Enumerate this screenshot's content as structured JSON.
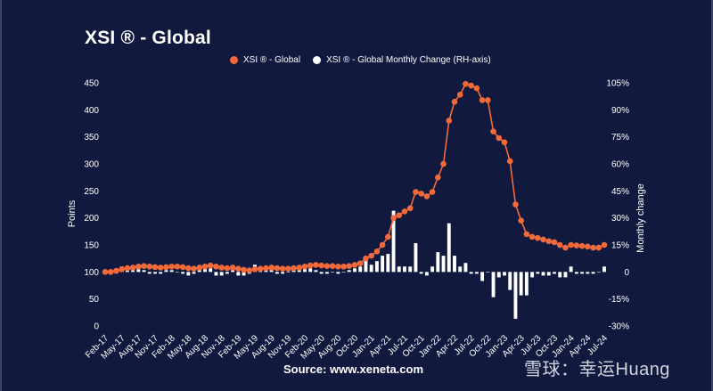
{
  "colors": {
    "background": "#111a3e",
    "index": "#f26a3a",
    "change": "#ffffff"
  },
  "watermark": "雪球：幸运Huang",
  "chart_data": {
    "type": "line",
    "title": "XSI ® - Global",
    "source": "Source: www.xeneta.com",
    "legend": [
      "XSI ® - Global",
      "XSI ® - Global Monthly Change (RH-axis)"
    ],
    "legend_position": "top",
    "ylabel": "Points",
    "y2label": "Monthly change",
    "ylim": [
      0,
      450
    ],
    "y_ticks": [
      "0",
      "50",
      "100",
      "150",
      "200",
      "250",
      "300",
      "350",
      "400",
      "450"
    ],
    "y2lim": [
      -30,
      105
    ],
    "y2_ticks": [
      "-30%",
      "-15%",
      "0",
      "15%",
      "30%",
      "45%",
      "60%",
      "75%",
      "90%",
      "105%"
    ],
    "x_tick_labels": [
      "Feb-17",
      "May-17",
      "Aug-17",
      "Nov-17",
      "Feb-18",
      "May-18",
      "Aug-18",
      "Nov-18",
      "Feb-19",
      "May-19",
      "Aug-19",
      "Nov-19",
      "Feb-20",
      "May-20",
      "Aug-20",
      "Oct-20",
      "Jan-21",
      "Apr-21",
      "Jul-21",
      "Oct-21",
      "Jan-22",
      "Apr-22",
      "Jul-22",
      "Oct-22",
      "Jan-23",
      "Apr-23",
      "Jul-23",
      "Oct-23",
      "Jan-24",
      "Apr-24",
      "Jul-24"
    ],
    "x": [
      "Feb-17",
      "Mar-17",
      "Apr-17",
      "May-17",
      "Jun-17",
      "Jul-17",
      "Aug-17",
      "Sep-17",
      "Oct-17",
      "Nov-17",
      "Dec-17",
      "Jan-18",
      "Feb-18",
      "Mar-18",
      "Apr-18",
      "May-18",
      "Jun-18",
      "Jul-18",
      "Aug-18",
      "Sep-18",
      "Oct-18",
      "Nov-18",
      "Dec-18",
      "Jan-19",
      "Feb-19",
      "Mar-19",
      "Apr-19",
      "May-19",
      "Jun-19",
      "Jul-19",
      "Aug-19",
      "Sep-19",
      "Oct-19",
      "Nov-19",
      "Dec-19",
      "Jan-20",
      "Feb-20",
      "Mar-20",
      "Apr-20",
      "May-20",
      "Jun-20",
      "Jul-20",
      "Aug-20",
      "Sep-20",
      "Oct-20",
      "Nov-20",
      "Dec-20",
      "Jan-21",
      "Feb-21",
      "Mar-21",
      "Apr-21",
      "May-21",
      "Jun-21",
      "Jul-21",
      "Aug-21",
      "Sep-21",
      "Oct-21",
      "Nov-21",
      "Dec-21",
      "Jan-22",
      "Feb-22",
      "Mar-22",
      "Apr-22",
      "May-22",
      "Jun-22",
      "Jul-22",
      "Aug-22",
      "Sep-22",
      "Oct-22",
      "Nov-22",
      "Dec-22",
      "Jan-23",
      "Feb-23",
      "Mar-23",
      "Apr-23",
      "May-23",
      "Jun-23",
      "Jul-23",
      "Aug-23",
      "Sep-23",
      "Oct-23",
      "Nov-23",
      "Dec-23",
      "Jan-24",
      "Feb-24",
      "Mar-24",
      "Apr-24",
      "May-24",
      "Jun-24",
      "Jul-24",
      "Aug-24"
    ],
    "series": [
      {
        "name": "XSI ® - Global",
        "axis": "left",
        "values": [
          100,
          100,
          102,
          105,
          107,
          108,
          110,
          111,
          110,
          109,
          108,
          109,
          110,
          110,
          109,
          107,
          106,
          108,
          110,
          112,
          110,
          108,
          107,
          108,
          106,
          104,
          103,
          105,
          106,
          107,
          108,
          107,
          106,
          106,
          107,
          108,
          110,
          112,
          113,
          112,
          111,
          111,
          110,
          110,
          111,
          113,
          116,
          125,
          130,
          138,
          150,
          165,
          200,
          205,
          212,
          218,
          248,
          245,
          240,
          248,
          275,
          300,
          380,
          415,
          428,
          448,
          445,
          440,
          418,
          418,
          360,
          348,
          340,
          305,
          225,
          195,
          170,
          165,
          163,
          160,
          157,
          155,
          150,
          145,
          150,
          149,
          148,
          147,
          145,
          145,
          150
        ],
        "marker": "circle"
      },
      {
        "name": "XSI ® - Global Monthly Change (RH-axis)",
        "axis": "right",
        "type": "bar",
        "values": [
          0,
          0,
          2,
          3,
          2,
          1,
          2,
          1,
          -1,
          -1,
          -1,
          1,
          1,
          0,
          -1,
          -2,
          -1,
          2,
          2,
          2,
          -2,
          -2,
          -1,
          1,
          -2,
          -2,
          -1,
          4,
          1,
          1,
          1,
          -1,
          -1,
          0,
          1,
          1,
          2,
          2,
          1,
          -1,
          -1,
          0,
          -1,
          0,
          1,
          2,
          3,
          8,
          4,
          6,
          9,
          10,
          34,
          3,
          3,
          3,
          16,
          -1,
          -2,
          3,
          11,
          9,
          27,
          9,
          3,
          5,
          -1,
          -1,
          -5,
          0,
          -14,
          -3,
          -2,
          -10,
          -26,
          -13,
          -13,
          -3,
          -1,
          -2,
          -2,
          -1,
          -3,
          -3,
          3,
          -1,
          -1,
          -1,
          -1,
          0,
          3
        ]
      }
    ],
    "grid": false
  }
}
